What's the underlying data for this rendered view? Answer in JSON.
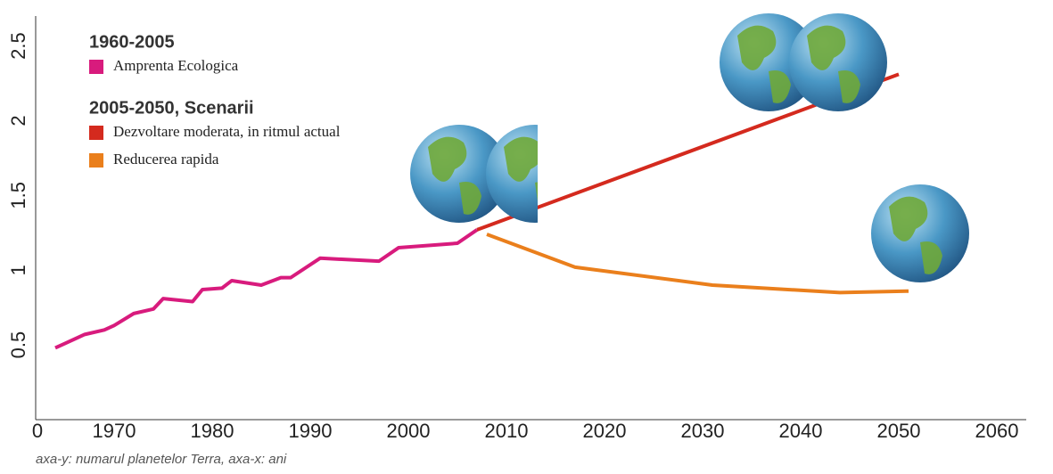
{
  "chart_data": {
    "type": "line",
    "legend_groups": [
      "1960-2005",
      "2005-2050, Scenarii"
    ],
    "note": "axa-y: numarul planetelor Terra, axa-x: ani",
    "xlim": [
      1962,
      2063
    ],
    "xticks": [
      1970,
      1980,
      1990,
      2000,
      2010,
      2020,
      2030,
      2040,
      2050,
      2060
    ],
    "ylim": [
      0,
      2.7
    ],
    "yticks": [
      0,
      0.5,
      1.0,
      1.5,
      2.0,
      2.5
    ],
    "series": [
      {
        "name": "Amprenta Ecologica",
        "color": "#d81b7d",
        "group": 0,
        "x": [
          1964,
          1965,
          1967,
          1969,
          1970,
          1972,
          1974,
          1975,
          1978,
          1979,
          1981,
          1982,
          1985,
          1987,
          1988,
          1991,
          1997,
          1999,
          2005,
          2007
        ],
        "values": [
          0.48,
          0.51,
          0.57,
          0.6,
          0.63,
          0.71,
          0.74,
          0.81,
          0.79,
          0.87,
          0.88,
          0.93,
          0.9,
          0.95,
          0.95,
          1.08,
          1.06,
          1.15,
          1.18,
          1.27
        ]
      },
      {
        "name": "Dezvoltare moderata, in ritmul actual",
        "color": "#d42a1e",
        "group": 1,
        "x": [
          2007,
          2050
        ],
        "values": [
          1.27,
          2.31
        ]
      },
      {
        "name": "Reducerea rapida",
        "color": "#ea7f1c",
        "group": 1,
        "x": [
          2008,
          2017,
          2031,
          2044,
          2051
        ],
        "values": [
          1.24,
          1.02,
          0.9,
          0.85,
          0.86
        ]
      }
    ]
  }
}
